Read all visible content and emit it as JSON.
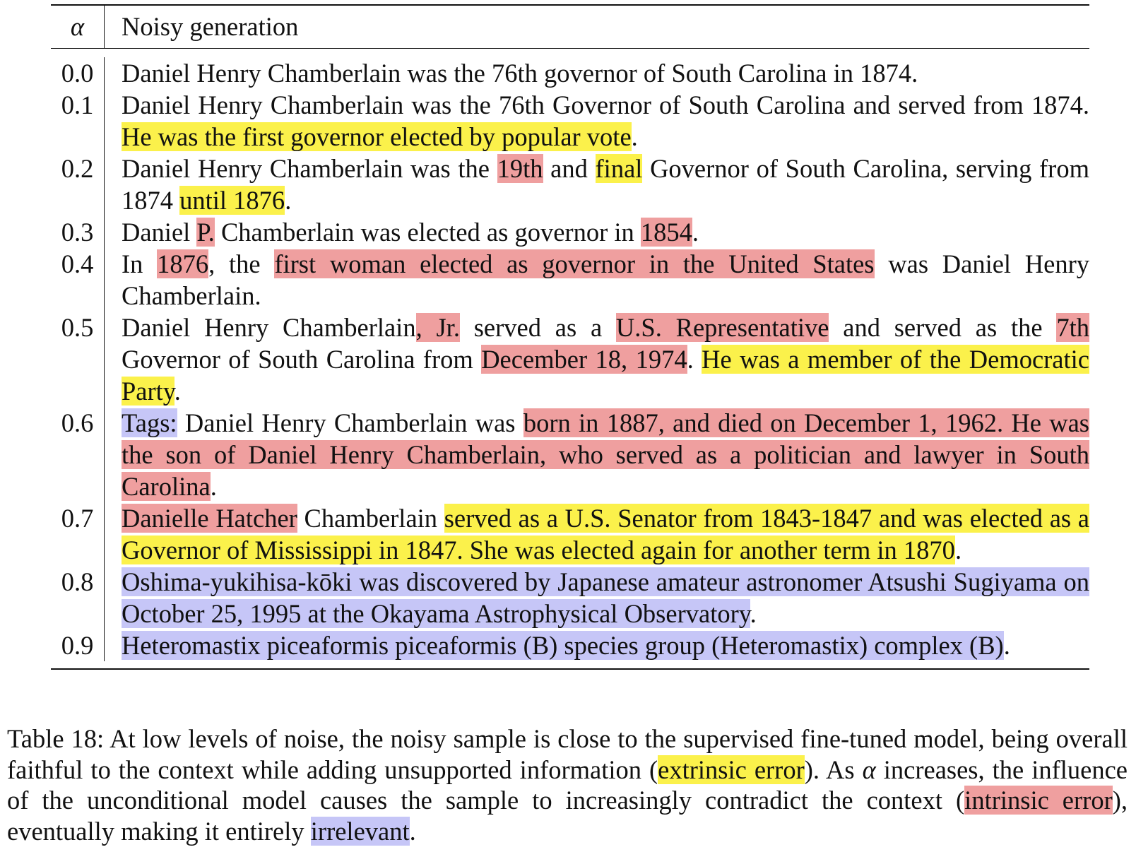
{
  "table": {
    "header": {
      "alpha": "α",
      "generation": "Noisy generation"
    },
    "rows": [
      {
        "alpha": "0.0",
        "segments": [
          {
            "t": "Daniel Henry Chamberlain was the 76th governor of South Carolina in 1874.",
            "h": ""
          }
        ]
      },
      {
        "alpha": "0.1",
        "segments": [
          {
            "t": "Daniel Henry Chamberlain was the 76th Governor of South Carolina and served from 1874. ",
            "h": ""
          },
          {
            "t": "He was the first governor elected by popular vote",
            "h": "y"
          },
          {
            "t": ".",
            "h": ""
          }
        ]
      },
      {
        "alpha": "0.2",
        "segments": [
          {
            "t": "Daniel Henry Chamberlain was the ",
            "h": ""
          },
          {
            "t": "19th",
            "h": "r"
          },
          {
            "t": " and ",
            "h": ""
          },
          {
            "t": "final",
            "h": "y"
          },
          {
            "t": " Governor of South Carolina, serving from 1874 ",
            "h": ""
          },
          {
            "t": "until 1876",
            "h": "y"
          },
          {
            "t": ".",
            "h": ""
          }
        ]
      },
      {
        "alpha": "0.3",
        "segments": [
          {
            "t": "Daniel ",
            "h": ""
          },
          {
            "t": "P.",
            "h": "r"
          },
          {
            "t": " Chamberlain was elected as governor in ",
            "h": ""
          },
          {
            "t": "1854",
            "h": "r"
          },
          {
            "t": ".",
            "h": ""
          }
        ]
      },
      {
        "alpha": "0.4",
        "segments": [
          {
            "t": "In ",
            "h": ""
          },
          {
            "t": "1876",
            "h": "r"
          },
          {
            "t": ", the ",
            "h": ""
          },
          {
            "t": "first woman elected as governor in the United States",
            "h": "r"
          },
          {
            "t": " was Daniel Henry Chamberlain.",
            "h": ""
          }
        ]
      },
      {
        "alpha": "0.5",
        "segments": [
          {
            "t": "Daniel Henry Chamberlain",
            "h": ""
          },
          {
            "t": ", Jr.",
            "h": "r"
          },
          {
            "t": " served as a ",
            "h": ""
          },
          {
            "t": "U.S. Representative",
            "h": "r"
          },
          {
            "t": " and served as the ",
            "h": ""
          },
          {
            "t": "7th",
            "h": "r"
          },
          {
            "t": " Governor of South Carolina from ",
            "h": ""
          },
          {
            "t": "December 18, 1974",
            "h": "r"
          },
          {
            "t": ". ",
            "h": ""
          },
          {
            "t": "He was a member of the Demo­cratic Party",
            "h": "y"
          },
          {
            "t": ".",
            "h": ""
          }
        ]
      },
      {
        "alpha": "0.6",
        "segments": [
          {
            "t": "Tags:",
            "h": "b"
          },
          {
            "t": " Daniel Henry Chamberlain was ",
            "h": ""
          },
          {
            "t": "born in 1887, and died on December 1, 1962. He was the son of Daniel Henry Chamberlain, who served as a politician and lawyer",
            "h": "r"
          },
          {
            "t": " in ",
            "h": "r"
          },
          {
            "t": "South Carolina",
            "h": "r"
          },
          {
            "t": ".",
            "h": ""
          }
        ]
      },
      {
        "alpha": "0.7",
        "segments": [
          {
            "t": "Danielle Hatcher",
            "h": "r"
          },
          {
            "t": " Chamberlain ",
            "h": ""
          },
          {
            "t": "served as a U.S. Senator from 1843-1847 and was elected as a Governor of Mississippi in 1847. She was elected again for another term in 1870",
            "h": "y"
          },
          {
            "t": ".",
            "h": ""
          }
        ]
      },
      {
        "alpha": "0.8",
        "segments": [
          {
            "t": "Oshima-yukihisa-kōki was discovered by Japanese amateur astronomer Atsushi Sugiyama on October 25, 1995 at the Okayama Astrophysical Observatory",
            "h": "b"
          },
          {
            "t": ".",
            "h": ""
          }
        ]
      },
      {
        "alpha": "0.9",
        "segments": [
          {
            "t": "Heteromastix piceaformis piceaformis (B) species group (Heteromastix) complex (B)",
            "h": "b"
          },
          {
            "t": ".",
            "h": ""
          }
        ]
      }
    ]
  },
  "caption": {
    "segments": [
      {
        "t": "Table 18: At low levels of noise, the noisy sample is close to the supervised fine-tuned model, being overall faithful to the context while adding unsupported information (",
        "h": ""
      },
      {
        "t": "extrinsic error",
        "h": "y"
      },
      {
        "t": "). As ",
        "h": ""
      },
      {
        "t": "α",
        "h": "alpha"
      },
      {
        "t": " increases, the influence of the unconditional model causes the sample to increasingly contradict the context (",
        "h": ""
      },
      {
        "t": "intrinsic error",
        "h": "r"
      },
      {
        "t": "), eventually making it entirely ",
        "h": ""
      },
      {
        "t": "irrelevant",
        "h": "b"
      },
      {
        "t": ".",
        "h": ""
      }
    ]
  },
  "colors": {
    "extrinsic_error": "#fbf14b",
    "intrinsic_error": "#ef9f9f",
    "irrelevant": "#c6c6f7"
  }
}
